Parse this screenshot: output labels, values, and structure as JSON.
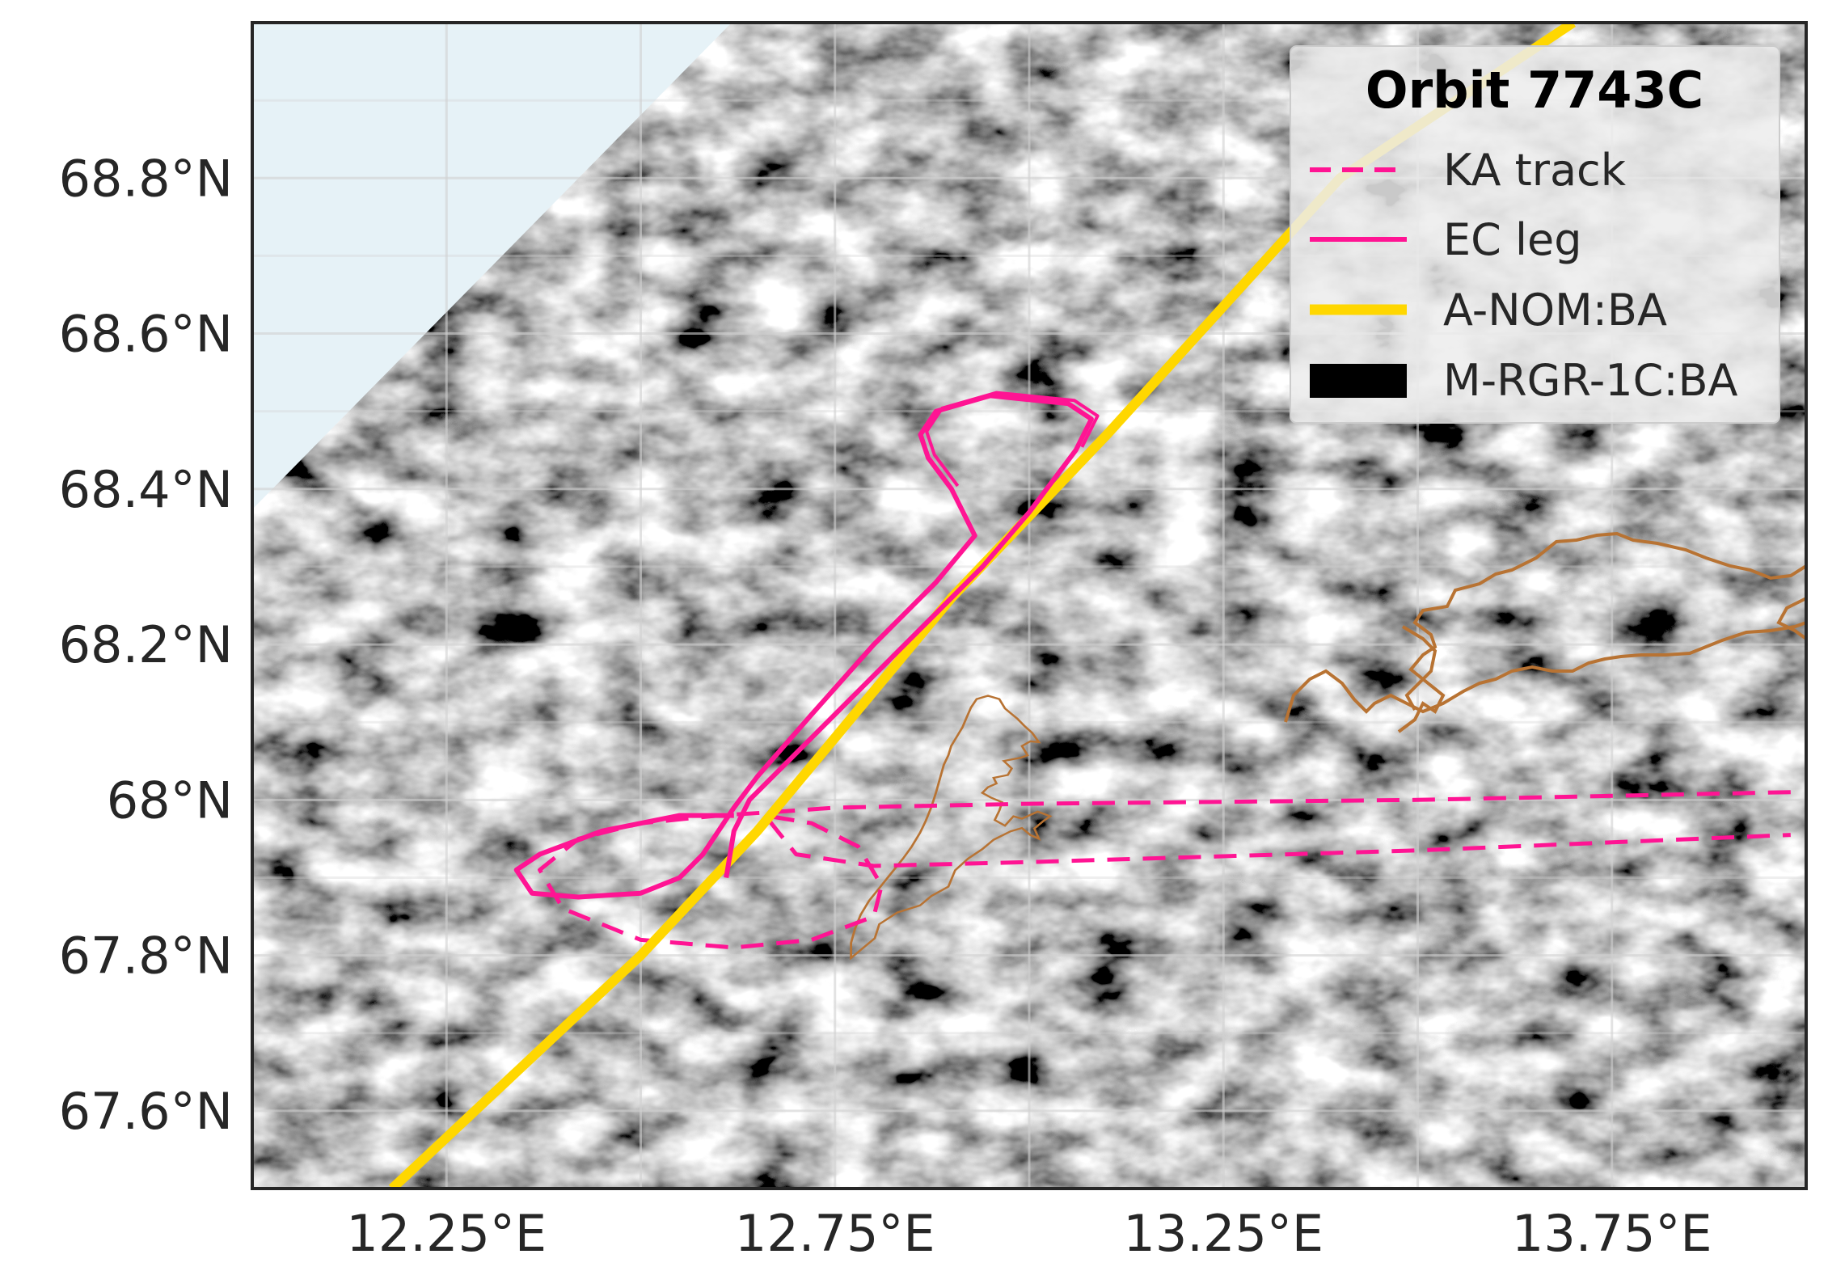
{
  "map": {
    "projection_extent": {
      "lon": [
        12.0,
        14.0
      ],
      "lat": [
        67.5,
        69.0
      ]
    },
    "background_color": "#e6f2f7",
    "grid": true,
    "x_ticks": [
      {
        "lon": 12.25,
        "label": "12.25°E"
      },
      {
        "lon": 12.75,
        "label": "12.75°E"
      },
      {
        "lon": 13.25,
        "label": "13.25°E"
      },
      {
        "lon": 13.75,
        "label": "13.75°E"
      }
    ],
    "y_ticks": [
      {
        "lat": 68.8,
        "label": "68.8°N"
      },
      {
        "lat": 68.6,
        "label": "68.6°N"
      },
      {
        "lat": 68.4,
        "label": "68.4°N"
      },
      {
        "lat": 68.2,
        "label": "68.2°N"
      },
      {
        "lat": 68.0,
        "label": "68°N"
      },
      {
        "lat": 67.8,
        "label": "67.8°N"
      },
      {
        "lat": 67.6,
        "label": "67.6°N"
      }
    ],
    "layers": {
      "satellite_image": {
        "colormap": "greyscale"
      },
      "coastline": {
        "color": "#b87333"
      },
      "ka_track": {
        "color": "#ff1493",
        "style": "dashed",
        "points": [
          [
            13.98,
            68.01
          ],
          [
            13.5,
            68.0
          ],
          [
            13.0,
            67.995
          ],
          [
            12.75,
            67.99
          ],
          [
            12.68,
            67.985
          ],
          [
            12.6,
            67.98
          ],
          [
            12.5,
            67.97
          ],
          [
            12.42,
            67.95
          ],
          [
            12.37,
            67.91
          ],
          [
            12.4,
            67.86
          ],
          [
            12.5,
            67.82
          ],
          [
            12.62,
            67.81
          ],
          [
            12.72,
            67.82
          ],
          [
            12.8,
            67.85
          ],
          [
            12.81,
            67.89
          ],
          [
            12.78,
            67.94
          ],
          [
            12.72,
            67.97
          ],
          [
            12.66,
            67.98
          ],
          [
            12.7,
            67.93
          ],
          [
            12.8,
            67.915
          ],
          [
            13.0,
            67.92
          ],
          [
            13.5,
            67.935
          ],
          [
            13.98,
            67.955
          ]
        ]
      },
      "ec_leg": {
        "color": "#ff1493",
        "style": "solid",
        "points": [
          [
            12.61,
            67.9
          ],
          [
            12.62,
            67.96
          ],
          [
            12.64,
            68.0
          ],
          [
            12.72,
            68.08
          ],
          [
            12.8,
            68.16
          ],
          [
            12.88,
            68.24
          ],
          [
            12.94,
            68.3
          ],
          [
            13.0,
            68.37
          ],
          [
            13.06,
            68.45
          ],
          [
            13.08,
            68.49
          ],
          [
            13.05,
            68.51
          ],
          [
            12.95,
            68.52
          ],
          [
            12.88,
            68.5
          ],
          [
            12.86,
            68.47
          ],
          [
            12.87,
            68.44
          ],
          [
            12.9,
            68.4
          ],
          [
            12.93,
            68.34
          ],
          [
            12.88,
            68.28
          ],
          [
            12.8,
            68.2
          ],
          [
            12.72,
            68.11
          ],
          [
            12.65,
            68.03
          ],
          [
            12.62,
            67.99
          ],
          [
            12.6,
            67.96
          ],
          [
            12.58,
            67.93
          ],
          [
            12.55,
            67.9
          ],
          [
            12.5,
            67.88
          ],
          [
            12.42,
            67.875
          ],
          [
            12.36,
            67.88
          ],
          [
            12.34,
            67.91
          ],
          [
            12.37,
            67.93
          ],
          [
            12.45,
            67.96
          ],
          [
            12.55,
            67.98
          ],
          [
            12.62,
            67.98
          ]
        ]
      },
      "a_nom_ba": {
        "color": "#ffd700",
        "points": [
          [
            12.18,
            67.5
          ],
          [
            12.5,
            67.8
          ],
          [
            12.65,
            67.96
          ],
          [
            12.9,
            68.26
          ],
          [
            13.1,
            68.47
          ],
          [
            13.4,
            68.8
          ],
          [
            13.7,
            69.0
          ]
        ]
      }
    }
  },
  "legend": {
    "title": "Orbit 7743C",
    "items": [
      {
        "label": "KA track",
        "color": "#ff1493",
        "style": "dashed"
      },
      {
        "label": "EC leg",
        "color": "#ff1493",
        "style": "solid"
      },
      {
        "label": "A-NOM:BA",
        "color": "#ffd700",
        "style": "solid"
      },
      {
        "label": "M-RGR-1C:BA",
        "color": "#000000",
        "style": "patch"
      }
    ]
  }
}
